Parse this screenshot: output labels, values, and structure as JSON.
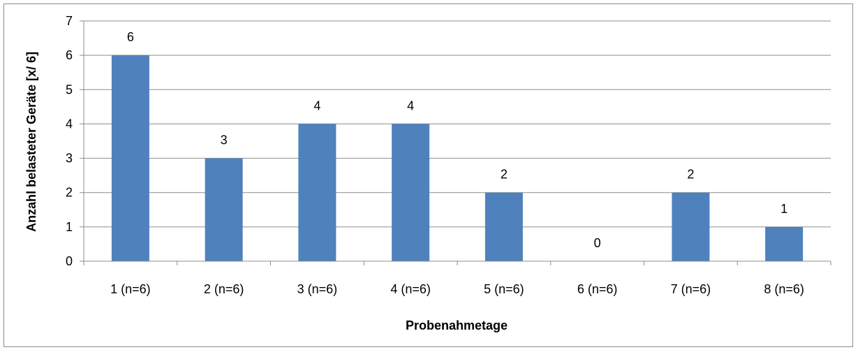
{
  "chart_data": {
    "type": "bar",
    "categories": [
      "1 (n=6)",
      "2 (n=6)",
      "3 (n=6)",
      "4 (n=6)",
      "5 (n=6)",
      "6 (n=6)",
      "7 (n=6)",
      "8 (n=6)"
    ],
    "values": [
      6,
      3,
      4,
      4,
      2,
      0,
      2,
      1
    ],
    "data_labels": [
      "6",
      "3",
      "4",
      "4",
      "2",
      "0",
      "2",
      "1"
    ],
    "y_ticks": [
      "0",
      "1",
      "2",
      "3",
      "4",
      "5",
      "6",
      "7"
    ],
    "title": "",
    "xlabel": "Probenahmetage",
    "ylabel": "Anzahl belasteter Geräte [x/ 6]",
    "ylim": [
      0,
      7
    ],
    "grid": true,
    "legend": "none",
    "colors": {
      "bar": "#4f81bd",
      "grid": "#8c8c8c",
      "axis": "#8c8c8c",
      "frame": "#8c8c8c"
    }
  }
}
